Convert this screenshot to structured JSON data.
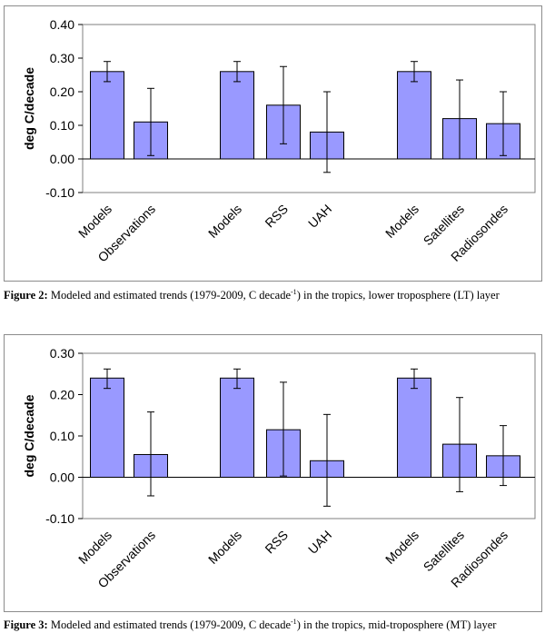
{
  "chart_data": [
    {
      "type": "bar",
      "ylabel": "deg C/decade",
      "ylim": [
        -0.1,
        0.4
      ],
      "yticks": [
        "0.40",
        "0.30",
        "0.20",
        "0.10",
        "0.00",
        "-0.10"
      ],
      "ytick_values": [
        0.4,
        0.3,
        0.2,
        0.1,
        0.0,
        -0.1
      ],
      "bar_color": "#9999ff",
      "categories": [
        "Models",
        "Observations",
        "Models",
        "RSS",
        "UAH",
        "Models",
        "Satellites",
        "Radiosondes"
      ],
      "values": [
        0.26,
        0.11,
        0.26,
        0.16,
        0.08,
        0.26,
        0.12,
        0.105
      ],
      "error_low": [
        0.23,
        0.01,
        0.23,
        0.045,
        -0.04,
        0.23,
        0.0,
        0.01
      ],
      "error_high": [
        0.29,
        0.21,
        0.29,
        0.275,
        0.2,
        0.29,
        0.235,
        0.2
      ],
      "groups": [
        [
          0,
          1
        ],
        [
          2,
          3,
          4
        ],
        [
          5,
          6,
          7
        ]
      ],
      "grid": false
    },
    {
      "type": "bar",
      "ylabel": "deg C/decade",
      "ylim": [
        -0.1,
        0.3
      ],
      "yticks": [
        "0.30",
        "0.20",
        "0.10",
        "0.00",
        "-0.10"
      ],
      "ytick_values": [
        0.3,
        0.2,
        0.1,
        0.0,
        -0.1
      ],
      "bar_color": "#9999ff",
      "categories": [
        "Models",
        "Observations",
        "Models",
        "RSS",
        "UAH",
        "Models",
        "Satellites",
        "Radiosondes"
      ],
      "values": [
        0.24,
        0.055,
        0.24,
        0.115,
        0.04,
        0.24,
        0.08,
        0.052
      ],
      "error_low": [
        0.215,
        -0.045,
        0.215,
        0.003,
        -0.07,
        0.215,
        -0.035,
        -0.02
      ],
      "error_high": [
        0.262,
        0.158,
        0.262,
        0.23,
        0.152,
        0.262,
        0.193,
        0.125
      ],
      "groups": [
        [
          0,
          1
        ],
        [
          2,
          3,
          4
        ],
        [
          5,
          6,
          7
        ]
      ],
      "grid": false
    }
  ],
  "captions": [
    {
      "label": "Figure 2:",
      "text_before": " Modeled and estimated trends (1979-2009, C decade",
      "superscript": "-1",
      "text_after": ") in the tropics, lower troposphere (LT) layer"
    },
    {
      "label": "Figure 3:",
      "text_before": " Modeled and estimated trends (1979-2009, C decade",
      "superscript": "-1",
      "text_after": ") in the tropics, mid-troposphere (MT) layer"
    }
  ]
}
